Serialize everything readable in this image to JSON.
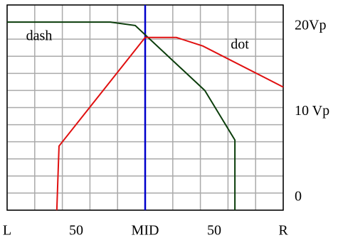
{
  "chart_data": {
    "type": "line",
    "xlim": [
      0,
      100
    ],
    "xticks": [
      {
        "value": 0,
        "label": "L"
      },
      {
        "value": 25,
        "label": "50"
      },
      {
        "value": 50,
        "label": "MID"
      },
      {
        "value": 75,
        "label": "50"
      },
      {
        "value": 100,
        "label": "R"
      }
    ],
    "xgrid": [
      0,
      10,
      20,
      30,
      40,
      50,
      60,
      70,
      80,
      90,
      100
    ],
    "ylim": [
      -2,
      22
    ],
    "yticks": [
      {
        "value": 0,
        "label": "0"
      },
      {
        "value": 10,
        "label": "10 Vp"
      },
      {
        "value": 20,
        "label": "20Vp"
      }
    ],
    "ygrid": [
      -2,
      0,
      2,
      4,
      6,
      8,
      10,
      12,
      14,
      16,
      18,
      20,
      22
    ],
    "grid": true,
    "vline": {
      "x": 50,
      "color": "#0000cc"
    },
    "series": [
      {
        "name": "dash",
        "color": "#0b3d0b",
        "x": [
          0,
          37.4,
          46.4,
          71.6,
          82.5,
          82.5
        ],
        "values": [
          20,
          20,
          19.6,
          12,
          6.2,
          -2
        ]
      },
      {
        "name": "dot",
        "color": "#e01010",
        "x": [
          18,
          18.8,
          50,
          61.3,
          70.9,
          100
        ],
        "values": [
          -2,
          5.5,
          18.2,
          18.2,
          17.2,
          12.4
        ]
      }
    ]
  }
}
